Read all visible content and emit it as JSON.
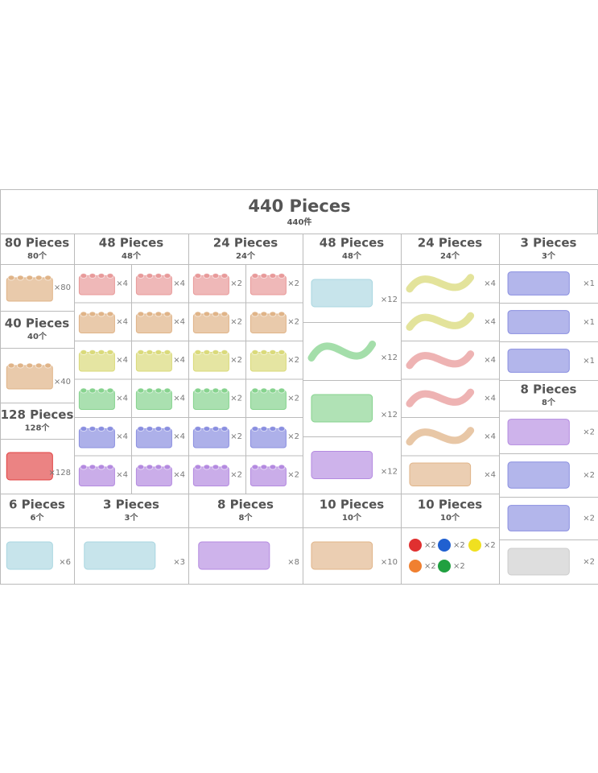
{
  "header": {
    "title": "440 Pieces",
    "subtitle": "440件"
  },
  "groups": [
    {
      "title": "80 Pieces",
      "subtitle": "80个",
      "items": [
        "×80"
      ]
    },
    {
      "title": "48 Pieces",
      "subtitle": "48个",
      "items": [
        "×4",
        "×4",
        "×4",
        "×4",
        "×4",
        "×4",
        "×4",
        "×4",
        "×4",
        "×4",
        "×4",
        "×4"
      ]
    },
    {
      "title": "24 Pieces",
      "subtitle": "24个",
      "items": [
        "×2",
        "×2",
        "×2",
        "×2",
        "×2",
        "×2",
        "×2",
        "×2",
        "×2",
        "×2",
        "×2",
        "×2"
      ]
    },
    {
      "title": "48 Pieces",
      "subtitle": "48个",
      "items": [
        "×12",
        "×12",
        "×12",
        "×12"
      ]
    },
    {
      "title": "24 Pieces",
      "subtitle": "24个",
      "items": [
        "×4",
        "×4",
        "×4",
        "×4",
        "×4",
        "×4"
      ]
    },
    {
      "title": "3 Pieces",
      "subtitle": "3个",
      "items": [
        "×1",
        "×1",
        "×1"
      ]
    },
    {
      "title": "40 Pieces",
      "subtitle": "40个",
      "items": [
        "×40"
      ]
    },
    {
      "title": "128 Pieces",
      "subtitle": "128个",
      "items": [
        "×128"
      ]
    },
    {
      "title": "8 Pieces",
      "subtitle": "8个",
      "items": [
        "×2",
        "×2",
        "×2",
        "×2"
      ]
    },
    {
      "title": "6 Pieces",
      "subtitle": "6个",
      "items": [
        "×6"
      ]
    },
    {
      "title": "3 Pieces",
      "subtitle": "3个",
      "items": [
        "×3"
      ]
    },
    {
      "title": "8 Pieces",
      "subtitle": "8个",
      "items": [
        "×8"
      ]
    },
    {
      "title": "10 Pieces",
      "subtitle": "10个",
      "items": [
        "×10"
      ]
    },
    {
      "title": "10 Pieces",
      "subtitle": "10个",
      "items": [
        "×2",
        "×2",
        "×2",
        "×2",
        "×2"
      ]
    }
  ]
}
